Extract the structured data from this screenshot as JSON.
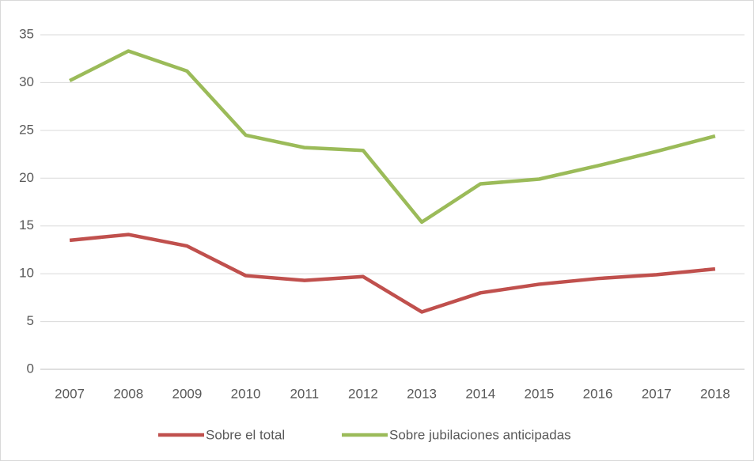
{
  "chart_data": {
    "type": "line",
    "categories": [
      "2007",
      "2008",
      "2009",
      "2010",
      "2011",
      "2012",
      "2013",
      "2014",
      "2015",
      "2016",
      "2017",
      "2018"
    ],
    "series": [
      {
        "name": "Sobre el total",
        "color": "#c0504d",
        "values": [
          13.5,
          14.1,
          12.9,
          9.8,
          9.3,
          9.7,
          6.0,
          8.0,
          8.9,
          9.5,
          9.9,
          10.5
        ]
      },
      {
        "name": "Sobre jubilaciones anticipadas",
        "color": "#9bbb59",
        "values": [
          30.2,
          33.3,
          31.2,
          24.5,
          23.2,
          22.9,
          15.4,
          19.4,
          19.9,
          21.3,
          22.8,
          24.4
        ]
      }
    ],
    "ylim": [
      0,
      35
    ],
    "yticks": [
      0,
      5,
      10,
      15,
      20,
      25,
      30,
      35
    ],
    "grid": true,
    "legend": "bottom"
  }
}
